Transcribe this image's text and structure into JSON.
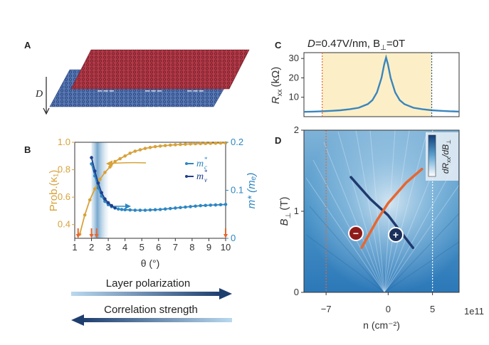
{
  "panels": {
    "a": {
      "label": "A",
      "field_label": "D",
      "top_charges": "−−−",
      "bottom_charges": "+++"
    },
    "b": {
      "label": "B",
      "chart_data": {
        "type": "line",
        "xlabel": "θ (°)",
        "ylabel_left": "Prob.(κ₁)",
        "ylabel_right": "m* (mₑ)",
        "x_ticks": [
          "1",
          "2",
          "3",
          "4",
          "5",
          "6",
          "7",
          "8",
          "9",
          "10"
        ],
        "yleft_ticks": [
          "0.4",
          "0.6",
          "0.8",
          "1.0"
        ],
        "yright_ticks": [
          "0",
          "0.1",
          "0.2"
        ],
        "xlim": [
          1,
          10
        ],
        "ylim_left": [
          0.3,
          1.0
        ],
        "ylim_right": [
          0,
          0.2
        ],
        "series": [
          {
            "name": "Prob.(κ₁)",
            "axis": "left",
            "color": "#d7a23a",
            "x": [
              1.3,
              1.6,
              1.9,
              2.2,
              2.5,
              2.8,
              3.1,
              3.4,
              3.7,
              4.0,
              4.3,
              4.6,
              4.9,
              5.2,
              5.5,
              5.8,
              6.1,
              6.4,
              6.7,
              7.0,
              7.3,
              7.6,
              7.9,
              8.2,
              8.5,
              8.8,
              9.1,
              9.4,
              9.7,
              10.0
            ],
            "values": [
              0.33,
              0.47,
              0.58,
              0.66,
              0.73,
              0.78,
              0.82,
              0.86,
              0.88,
              0.9,
              0.92,
              0.935,
              0.945,
              0.955,
              0.962,
              0.968,
              0.972,
              0.976,
              0.979,
              0.982,
              0.984,
              0.986,
              0.988,
              0.989,
              0.99,
              0.991,
              0.992,
              0.993,
              0.994,
              0.995
            ]
          },
          {
            "name": "m_c*",
            "axis": "right",
            "color": "#2e86c1",
            "x": [
              2.0,
              2.2,
              2.4,
              2.6,
              2.8,
              3.0,
              3.2,
              3.4,
              3.6,
              3.8,
              4.0,
              4.3,
              4.6,
              4.9,
              5.2,
              5.5,
              5.8,
              6.1,
              6.4,
              6.7,
              7.0,
              7.3,
              7.6,
              7.9,
              8.2,
              8.5,
              8.8,
              9.1,
              9.4,
              9.7,
              10.0
            ],
            "values": [
              0.155,
              0.13,
              0.105,
              0.088,
              0.077,
              0.07,
              0.066,
              0.063,
              0.061,
              0.06,
              0.0595,
              0.059,
              0.0585,
              0.0585,
              0.0585,
              0.059,
              0.0595,
              0.06,
              0.061,
              0.062,
              0.063,
              0.064,
              0.065,
              0.066,
              0.067,
              0.068,
              0.0685,
              0.069,
              0.0695,
              0.07,
              0.0705
            ]
          },
          {
            "name": "m_v*",
            "axis": "right",
            "color": "#1f3f8f",
            "x": [
              2.0,
              2.2,
              2.4,
              2.6,
              2.8,
              3.0,
              3.2,
              3.4
            ],
            "values": [
              0.168,
              0.14,
              0.115,
              0.095,
              0.082,
              0.074,
              0.068,
              0.064
            ]
          }
        ],
        "legend": [
          "m",
          "c",
          "*",
          "m",
          "v",
          "*"
        ],
        "arrow_thetas": [
          1.2,
          2.0,
          2.3,
          10.0
        ],
        "band": [
          2.0,
          3.0
        ]
      }
    },
    "c": {
      "label": "C",
      "title_prefix": "D",
      "title_mid": "=0.47V/nm, B",
      "title_sub": "⊥",
      "title_suffix": "=0T",
      "chart_data": {
        "type": "line",
        "ylabel": "R",
        "ylabel_sub": "xx",
        "ylabel_unit": "(kΩ)",
        "y_ticks": [
          "10",
          "20",
          "30"
        ],
        "ylim": [
          0,
          33
        ],
        "xlim": [
          -9,
          8
        ],
        "x": [
          -9,
          -8,
          -7,
          -6,
          -5,
          -4,
          -3,
          -2,
          -1.5,
          -1,
          -0.5,
          -0.2,
          0,
          0.2,
          0.5,
          1,
          1.5,
          2,
          3,
          4,
          5,
          6,
          7,
          8
        ],
        "values": [
          2.5,
          2.6,
          2.8,
          3.0,
          3.3,
          3.8,
          4.6,
          6.5,
          8.5,
          12.5,
          20,
          27,
          30.5,
          27,
          20,
          12.5,
          8.5,
          6.5,
          4.6,
          3.8,
          3.3,
          3.0,
          2.8,
          2.6
        ],
        "band": [
          -7,
          5
        ]
      }
    },
    "d": {
      "label": "D",
      "ylabel": "B",
      "ylabel_sub": "⊥",
      "ylabel_unit": "(T)",
      "xlabel": "n (cm⁻²)",
      "y_ticks": [
        "0",
        "1",
        "2"
      ],
      "x_ticks": [
        "−7",
        "0",
        "5"
      ],
      "x_multiplier": "1e11",
      "colorbar_label": "dR",
      "colorbar_label_sub": "xx",
      "colorbar_label_suffix": "/dB",
      "colorbar_label_sub2": "⊥",
      "minus_marker": "−",
      "plus_marker": "+",
      "chart_data": {
        "type": "heatmap",
        "xlim": [
          -9.5,
          8
        ],
        "ylim": [
          0,
          2
        ],
        "lines": [
          {
            "name": "orange",
            "color": "#e8662e",
            "x": [
              -3,
              -1.2,
              0,
              2,
              3.8
            ],
            "y": [
              0.55,
              0.9,
              1.1,
              1.35,
              1.52
            ]
          },
          {
            "name": "navy",
            "color": "#1f3a6e",
            "x": [
              -4.2,
              -2,
              0,
              1.6,
              2.8
            ],
            "y": [
              1.42,
              1.15,
              0.95,
              0.72,
              0.55
            ]
          }
        ],
        "dashed_x": [
          -7,
          5
        ]
      }
    }
  },
  "arrows": {
    "polarization": "Layer polarization",
    "correlation": "Correlation strength"
  }
}
